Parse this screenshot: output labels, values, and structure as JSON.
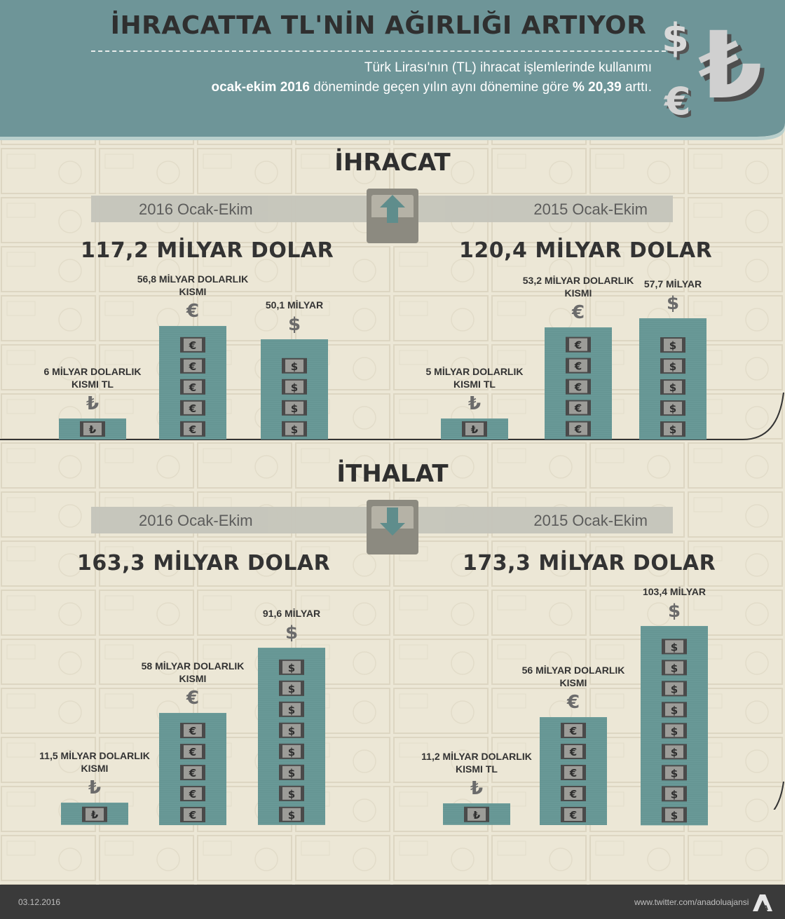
{
  "header": {
    "title": "İHRACATTA TL'NİN AĞIRLIĞI ARTIYOR",
    "subtitle_line1": "Türk Lirası'nın (TL) ihracat işlemlerinde kullanımı",
    "subtitle_bold1": "ocak-ekim 2016",
    "subtitle_mid": " döneminde geçen yılın aynı dönemine göre ",
    "subtitle_bold2": "% 20,39",
    "subtitle_end": " arttı."
  },
  "colors": {
    "header_bg": "#6e9598",
    "stack": "#6a9a98",
    "stack_dark": "#4f7b79",
    "background": "#ece7d6",
    "footer": "#3a3a3a"
  },
  "icons": [
    "dollar-sign-3d-icon",
    "lira-sign-3d-icon",
    "euro-sign-3d-icon",
    "upload-box-icon",
    "download-box-icon",
    "aa-logo-icon"
  ],
  "export": {
    "title": "İHRACAT",
    "left_period": "2016 Ocak-Ekim",
    "right_period": "2015 Ocak-Ekim",
    "left_total": "117,2 MİLYAR DOLAR",
    "right_total": "120,4 MİLYAR DOLAR"
  },
  "import": {
    "title": "İTHALAT",
    "left_period": "2016 Ocak-Ekim",
    "right_period": "2015 Ocak-Ekim",
    "left_total": "163,3 MİLYAR DOLAR",
    "right_total": "173,3 MİLYAR DOLAR"
  },
  "chart_data": [
    {
      "type": "bar",
      "title": "İHRACAT 2016 Ocak-Ekim",
      "categories": [
        "TL",
        "Euro",
        "Dolar"
      ],
      "values": [
        6,
        56.8,
        50.1
      ],
      "labels": [
        "6 MİLYAR DOLARLIK KISMI TL",
        "56,8 MİLYAR DOLARLIK KISMI",
        "50,1 MİLYAR"
      ],
      "symbols": [
        "₺",
        "€",
        "$"
      ],
      "unit": "MİLYAR DOLAR"
    },
    {
      "type": "bar",
      "title": "İHRACAT 2015 Ocak-Ekim",
      "categories": [
        "TL",
        "Euro",
        "Dolar"
      ],
      "values": [
        5,
        53.2,
        57.7
      ],
      "labels": [
        "5 MİLYAR DOLARLIK KISMI TL",
        "53,2 MİLYAR DOLARLIK KISMI",
        "57,7 MİLYAR"
      ],
      "symbols": [
        "₺",
        "€",
        "$"
      ],
      "unit": "MİLYAR DOLAR"
    },
    {
      "type": "bar",
      "title": "İTHALAT 2016 Ocak-Ekim",
      "categories": [
        "TL",
        "Euro",
        "Dolar"
      ],
      "values": [
        11.5,
        58,
        91.6
      ],
      "labels": [
        "11,5 MİLYAR DOLARLIK KISMI",
        "58 MİLYAR DOLARLIK KISMI",
        "91,6 MİLYAR"
      ],
      "symbols": [
        "₺",
        "€",
        "$"
      ],
      "unit": "MİLYAR DOLAR"
    },
    {
      "type": "bar",
      "title": "İTHALAT 2015 Ocak-Ekim",
      "categories": [
        "TL",
        "Euro",
        "Dolar"
      ],
      "values": [
        11.2,
        56,
        103.4
      ],
      "labels": [
        "11,2 MİLYAR DOLARLIK KISMI TL",
        "56 MİLYAR DOLARLIK KISMI",
        "103,4 MİLYAR"
      ],
      "symbols": [
        "₺",
        "€",
        "$"
      ],
      "unit": "MİLYAR DOLAR"
    }
  ],
  "footer": {
    "date": "03.12.2016",
    "twitter": "www.twitter.com/anadoluajansi",
    "logo_text": "AA"
  }
}
